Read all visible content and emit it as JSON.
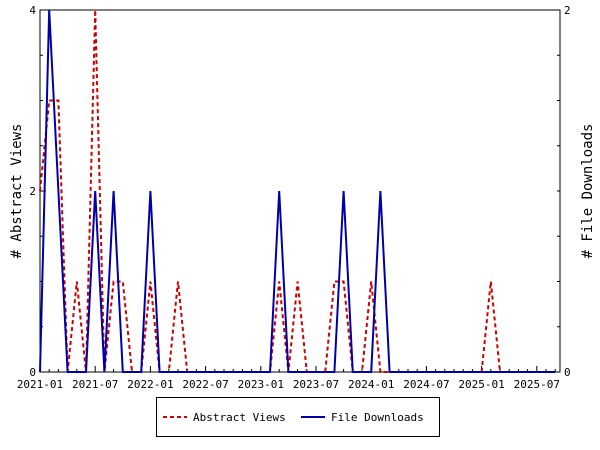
{
  "chart_data": {
    "type": "line",
    "x": [
      "2021-01",
      "2021-02",
      "2021-03",
      "2021-04",
      "2021-05",
      "2021-06",
      "2021-07",
      "2021-08",
      "2021-09",
      "2021-10",
      "2021-11",
      "2021-12",
      "2022-01",
      "2022-02",
      "2022-03",
      "2022-04",
      "2022-05",
      "2022-06",
      "2022-07",
      "2022-08",
      "2022-09",
      "2022-10",
      "2022-11",
      "2022-12",
      "2023-01",
      "2023-02",
      "2023-03",
      "2023-04",
      "2023-05",
      "2023-06",
      "2023-07",
      "2023-08",
      "2023-09",
      "2023-10",
      "2023-11",
      "2023-12",
      "2024-01",
      "2024-02",
      "2024-03",
      "2024-04",
      "2024-05",
      "2024-06",
      "2024-07",
      "2024-08",
      "2024-09",
      "2024-10",
      "2024-11",
      "2024-12",
      "2025-01",
      "2025-02",
      "2025-03",
      "2025-04",
      "2025-05",
      "2025-06",
      "2025-07",
      "2025-08",
      "2025-09"
    ],
    "series": [
      {
        "name": "Abstract Views",
        "color": "#cc0000",
        "dash": true,
        "axis": "left",
        "values": [
          2,
          3,
          3,
          0,
          1,
          0,
          4,
          0,
          1,
          1,
          0,
          0,
          1,
          0,
          0,
          1,
          0,
          0,
          0,
          0,
          0,
          0,
          0,
          0,
          0,
          0,
          1,
          0,
          1,
          0,
          0,
          0,
          1,
          1,
          0,
          0,
          1,
          0,
          0,
          0,
          0,
          0,
          0,
          0,
          0,
          0,
          0,
          0,
          0,
          1,
          0,
          0,
          0,
          0,
          0,
          0,
          0
        ]
      },
      {
        "name": "File Downloads",
        "color": "#0000aa",
        "dash": false,
        "axis": "right",
        "values": [
          0,
          2,
          1,
          0,
          0,
          0,
          1,
          0,
          1,
          0,
          0,
          0,
          1,
          0,
          0,
          0,
          0,
          0,
          0,
          0,
          0,
          0,
          0,
          0,
          0,
          0,
          1,
          0,
          0,
          0,
          0,
          0,
          0,
          1,
          0,
          0,
          0,
          1,
          0,
          0,
          0,
          0,
          0,
          0,
          0,
          0,
          0,
          0,
          0,
          0,
          0,
          0,
          0,
          0,
          0,
          0,
          0
        ]
      }
    ],
    "xticks": [
      "2021-01",
      "2021-07",
      "2022-01",
      "2022-07",
      "2023-01",
      "2023-07",
      "2024-01",
      "2024-07",
      "2025-01",
      "2025-07"
    ],
    "ylabel": "# Abstract Views",
    "y2label": "# File Downloads",
    "ylim": [
      0,
      4
    ],
    "y2lim": [
      0,
      2
    ],
    "yticks": [
      "0",
      "2",
      "4"
    ],
    "y2ticks": [
      "0",
      "2"
    ],
    "legend_position": "bottom-center",
    "grid": false
  }
}
